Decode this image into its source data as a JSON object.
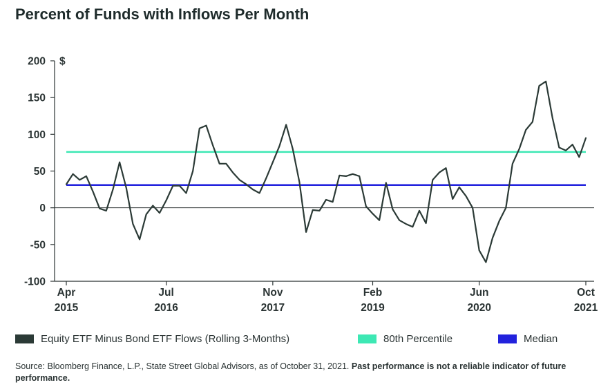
{
  "title": "Percent of Funds with Inflows Per Month",
  "chart_data": {
    "type": "line",
    "unit_label": "$",
    "ylim": [
      -100,
      200
    ],
    "y_ticks": [
      200,
      150,
      100,
      50,
      0,
      -50,
      -100
    ],
    "x_ticks": [
      {
        "month": "Apr",
        "year": "2015",
        "x": "2015-04"
      },
      {
        "month": "Jul",
        "year": "2016",
        "x": "2016-07"
      },
      {
        "month": "Nov",
        "year": "2017",
        "x": "2017-11"
      },
      {
        "month": "Feb",
        "year": "2019",
        "x": "2019-02"
      },
      {
        "month": "Jun",
        "year": "2020",
        "x": "2020-06"
      },
      {
        "month": "Oct",
        "year": "2021",
        "x": "2021-10"
      }
    ],
    "xlim": [
      "2015-04",
      "2021-10"
    ],
    "grid": false,
    "legend_placement": "bottom",
    "series": [
      {
        "name": "Equity ETF Minus Bond ETF Flows (Rolling 3-Months)",
        "color": "#2b3a36",
        "type": "line",
        "x": [
          "2015-04",
          "2015-05",
          "2015-06",
          "2015-07",
          "2015-08",
          "2015-09",
          "2015-10",
          "2015-11",
          "2015-12",
          "2016-01",
          "2016-02",
          "2016-03",
          "2016-04",
          "2016-05",
          "2016-06",
          "2016-07",
          "2016-08",
          "2016-09",
          "2016-10",
          "2016-11",
          "2016-12",
          "2017-01",
          "2017-02",
          "2017-03",
          "2017-04",
          "2017-05",
          "2017-06",
          "2017-07",
          "2017-08",
          "2017-09",
          "2017-10",
          "2017-11",
          "2017-12",
          "2018-01",
          "2018-02",
          "2018-03",
          "2018-04",
          "2018-05",
          "2018-06",
          "2018-07",
          "2018-08",
          "2018-09",
          "2018-10",
          "2018-11",
          "2018-12",
          "2019-01",
          "2019-02",
          "2019-03",
          "2019-04",
          "2019-05",
          "2019-06",
          "2019-07",
          "2019-08",
          "2019-09",
          "2019-10",
          "2019-11",
          "2019-12",
          "2020-01",
          "2020-02",
          "2020-03",
          "2020-04",
          "2020-05",
          "2020-06",
          "2020-07",
          "2020-08",
          "2020-09",
          "2020-10",
          "2020-11",
          "2020-12",
          "2021-01",
          "2021-02",
          "2021-03",
          "2021-04",
          "2021-05",
          "2021-06",
          "2021-07",
          "2021-08",
          "2021-09",
          "2021-10"
        ],
        "values": [
          32,
          46,
          38,
          43,
          22,
          -1,
          -4,
          25,
          62,
          27,
          -22,
          -43,
          -9,
          3,
          -7,
          10,
          30,
          30,
          20,
          50,
          108,
          112,
          85,
          60,
          60,
          48,
          38,
          32,
          25,
          20,
          40,
          62,
          84,
          113,
          80,
          35,
          -33,
          -3,
          -4,
          11,
          8,
          44,
          43,
          46,
          43,
          2,
          -8,
          -17,
          34,
          -2,
          -17,
          -22,
          -26,
          -4,
          -21,
          38,
          48,
          54,
          12,
          28,
          16,
          0,
          -58,
          -74,
          -41,
          -18,
          0,
          60,
          80,
          106,
          117,
          166,
          172,
          122,
          82,
          78,
          86,
          69,
          95
        ]
      },
      {
        "name": "80th Percentile",
        "color": "#3de8b4",
        "type": "hline",
        "value": 76
      },
      {
        "name": "Median",
        "color": "#2222dd",
        "type": "hline",
        "value": 31
      }
    ]
  },
  "legend": [
    {
      "label": "Equity ETF Minus Bond ETF Flows (Rolling 3-Months)",
      "color": "#2b3a36"
    },
    {
      "label": "80th Percentile",
      "color": "#3de8b4"
    },
    {
      "label": "Median",
      "color": "#2222dd"
    }
  ],
  "source": {
    "text": "Source: Bloomberg Finance, L.P., State Street Global Advisors, as of October 31, 2021. ",
    "bold": "Past performance is not a reliable indicator of future performance."
  }
}
